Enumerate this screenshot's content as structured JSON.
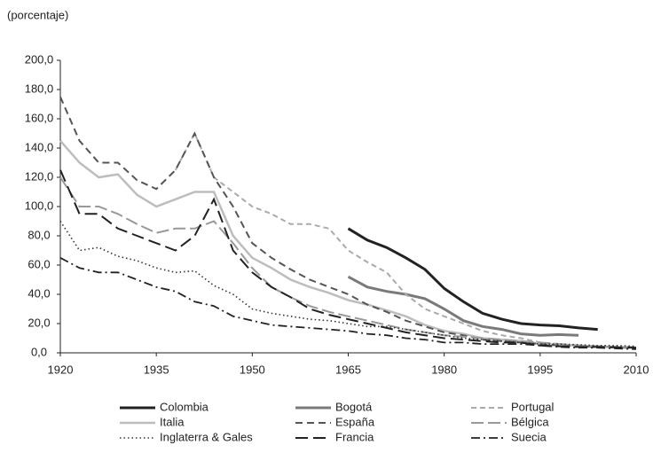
{
  "chart_data": {
    "type": "line",
    "y_axis_label": "(porcentaje)",
    "x": [
      1920,
      1923,
      1926,
      1929,
      1932,
      1935,
      1938,
      1941,
      1944,
      1947,
      1950,
      1953,
      1956,
      1959,
      1962,
      1965,
      1968,
      1971,
      1974,
      1977,
      1980,
      1983,
      1986,
      1989,
      1992,
      1995,
      1998,
      2001,
      2004,
      2007,
      2010
    ],
    "xlim": [
      1920,
      2010
    ],
    "xticks": [
      1920,
      1935,
      1950,
      1965,
      1980,
      1995,
      2010
    ],
    "ylim": [
      0,
      200
    ],
    "yticks": [
      {
        "value": 0,
        "label": "0,0"
      },
      {
        "value": 20,
        "label": "20,0"
      },
      {
        "value": 40,
        "label": "40,0"
      },
      {
        "value": 60,
        "label": "60,0"
      },
      {
        "value": 80,
        "label": "80,0"
      },
      {
        "value": 100,
        "label": "100,0"
      },
      {
        "value": 120,
        "label": "120,0"
      },
      {
        "value": 140,
        "label": "140,0"
      },
      {
        "value": 160,
        "label": "160,0"
      },
      {
        "value": 180,
        "label": "180,0"
      },
      {
        "value": 200,
        "label": "200,0"
      }
    ],
    "series": [
      {
        "name": "Colombia",
        "color": "#222222",
        "values": [
          null,
          null,
          null,
          null,
          null,
          null,
          null,
          null,
          null,
          null,
          null,
          null,
          null,
          null,
          null,
          85,
          77,
          72,
          65,
          57,
          44,
          35,
          27,
          23,
          20,
          19,
          18.5,
          17,
          16,
          null,
          null
        ]
      },
      {
        "name": "Bogotá",
        "color": "#7a7a7a",
        "values": [
          null,
          null,
          null,
          null,
          null,
          null,
          null,
          null,
          null,
          null,
          null,
          null,
          null,
          null,
          null,
          52,
          45,
          42,
          40,
          37,
          30,
          22,
          18,
          16,
          13,
          12,
          12.5,
          12,
          null,
          null,
          null
        ]
      },
      {
        "name": "Portugal",
        "color": "#aaaaaa",
        "values": [
          null,
          null,
          null,
          null,
          null,
          null,
          125,
          150,
          120,
          110,
          100,
          95,
          88,
          88,
          85,
          70,
          62,
          55,
          40,
          30,
          25,
          20,
          15,
          12,
          10,
          7,
          6,
          5,
          4,
          3.5,
          3
        ]
      },
      {
        "name": "Italia",
        "color": "#bdbdbd",
        "values": [
          145,
          130,
          120,
          122,
          108,
          100,
          105,
          110,
          110,
          80,
          65,
          58,
          50,
          45,
          41,
          36,
          33,
          29,
          25,
          19,
          15,
          13,
          10,
          9,
          8,
          6,
          5.5,
          5,
          4.5,
          3.8,
          3.5
        ]
      },
      {
        "name": "España",
        "color": "#555555",
        "values": [
          175,
          145,
          130,
          130,
          118,
          112,
          125,
          150,
          120,
          100,
          75,
          65,
          57,
          50,
          45,
          40,
          33,
          28,
          22,
          18,
          14,
          12,
          9,
          8,
          7,
          6,
          5,
          4.5,
          4,
          3.8,
          3.5
        ]
      },
      {
        "name": "Bélgica",
        "color": "#999999",
        "values": [
          120,
          100,
          100,
          95,
          88,
          82,
          85,
          85,
          90,
          75,
          58,
          45,
          38,
          32,
          28,
          25,
          22,
          19,
          16,
          14,
          12,
          11,
          10,
          9,
          8,
          7,
          6,
          5,
          4.5,
          4,
          4
        ]
      },
      {
        "name": "Inglaterra & Gales",
        "color": "#333333",
        "values": [
          90,
          70,
          72,
          66,
          63,
          58,
          55,
          56,
          46,
          40,
          30,
          27,
          25,
          23,
          22,
          20,
          18,
          18,
          16,
          14,
          12,
          10,
          9,
          8,
          7,
          6,
          6,
          5.5,
          5,
          5,
          4.5
        ]
      },
      {
        "name": "Francia",
        "color": "#222222",
        "values": [
          125,
          95,
          95,
          85,
          80,
          75,
          70,
          80,
          105,
          70,
          55,
          45,
          38,
          30,
          26,
          23,
          20,
          17,
          14,
          12,
          10,
          9,
          8,
          7,
          7,
          5,
          4.5,
          4,
          4,
          3.8,
          3.5
        ]
      },
      {
        "name": "Suecia",
        "color": "#222222",
        "values": [
          65,
          58,
          55,
          55,
          50,
          45,
          42,
          35,
          32,
          25,
          22,
          19,
          18,
          17,
          16,
          15,
          13,
          12,
          10,
          9,
          7,
          7,
          6,
          6,
          6,
          5,
          4,
          3.5,
          3.5,
          3,
          2.5
        ]
      }
    ]
  }
}
